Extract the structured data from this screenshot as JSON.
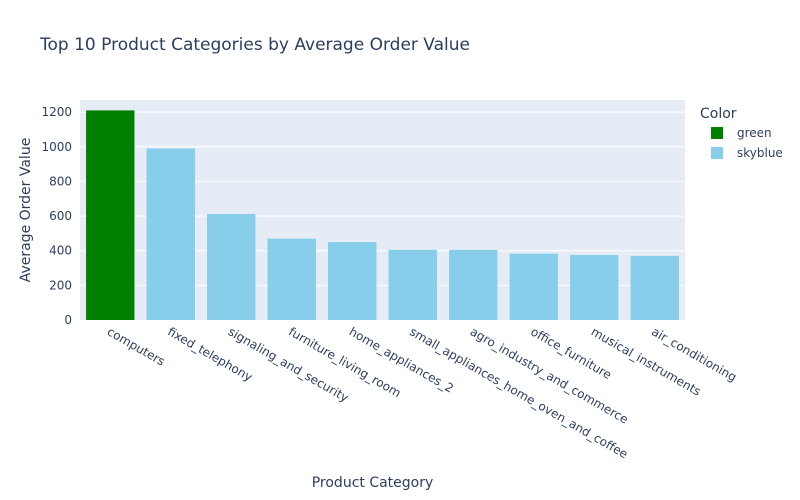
{
  "chart_data": {
    "type": "bar",
    "title": "Top 10 Product Categories by Average Order Value",
    "xlabel": "Product Category",
    "ylabel": "Average Order Value",
    "categories": [
      "computers",
      "fixed_telephony",
      "signaling_and_security",
      "furniture_living_room",
      "home_appliances_2",
      "small_appliances_home_oven_and_coffee",
      "agro_industry_and_commerce",
      "office_furniture",
      "musical_instruments",
      "air_conditioning"
    ],
    "values": [
      1210,
      990,
      612,
      470,
      450,
      405,
      405,
      383,
      375,
      370
    ],
    "bar_colors": [
      "green",
      "skyblue",
      "skyblue",
      "skyblue",
      "skyblue",
      "skyblue",
      "skyblue",
      "skyblue",
      "skyblue",
      "skyblue"
    ],
    "yticks": [
      0,
      200,
      400,
      600,
      800,
      1000,
      1200
    ],
    "ylim": [
      0,
      1270
    ],
    "grid": true,
    "legend": {
      "title": "Color",
      "placement": "top-right",
      "entries": [
        {
          "label": "green",
          "color": "#008000"
        },
        {
          "label": "skyblue",
          "color": "#87ceeb"
        }
      ]
    },
    "colors": {
      "green": "#008000",
      "skyblue": "#87ceeb",
      "plot_bg": "#e5ecf6",
      "text": "#2a3f5f"
    }
  }
}
